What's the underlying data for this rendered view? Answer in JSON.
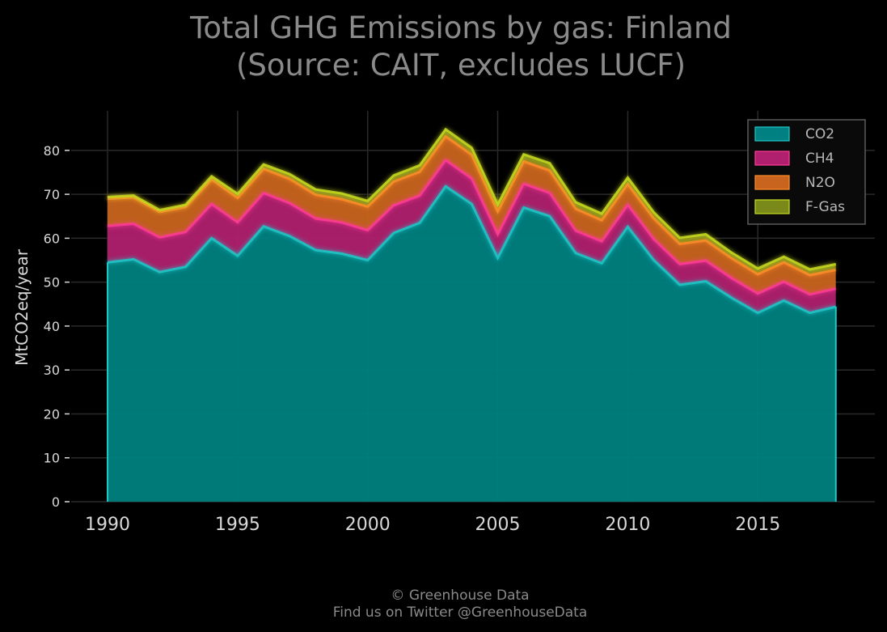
{
  "chart_data": {
    "type": "area",
    "title": "Total GHG Emissions by gas: Finland",
    "subtitle": "(Source: CAIT, excludes LUCF)",
    "ylabel": "MtCO2eq/year",
    "xlabel": "",
    "x": [
      1990,
      1991,
      1992,
      1993,
      1994,
      1995,
      1996,
      1997,
      1998,
      1999,
      2000,
      2001,
      2002,
      2003,
      2004,
      2005,
      2006,
      2007,
      2008,
      2009,
      2010,
      2011,
      2012,
      2013,
      2014,
      2015,
      2016,
      2017,
      2018
    ],
    "series": [
      {
        "name": "CO2",
        "color": "#008080",
        "values": [
          54.5,
          55.2,
          52.3,
          53.5,
          60.0,
          56.0,
          62.7,
          60.5,
          57.3,
          56.5,
          55.0,
          61.2,
          63.5,
          71.8,
          67.8,
          55.5,
          67.0,
          65.0,
          56.6,
          54.3,
          62.6,
          55.0,
          49.4,
          50.2,
          46.4,
          43.0,
          45.8,
          43.0,
          44.4
        ]
      },
      {
        "name": "CH4",
        "color": "#b0206e",
        "values": [
          8.3,
          8.1,
          7.9,
          7.9,
          7.8,
          7.6,
          7.6,
          7.5,
          7.2,
          7.1,
          6.8,
          6.3,
          6.2,
          6.0,
          5.8,
          5.4,
          5.4,
          5.3,
          5.1,
          5.0,
          5.0,
          4.8,
          4.7,
          4.7,
          4.5,
          4.4,
          4.3,
          4.2,
          4.1
        ]
      },
      {
        "name": "N2O",
        "color": "#c8641e",
        "values": [
          6.2,
          6.0,
          5.8,
          5.7,
          5.6,
          5.6,
          5.5,
          5.5,
          5.4,
          5.3,
          5.4,
          5.4,
          5.4,
          5.4,
          5.4,
          5.2,
          5.1,
          5.1,
          5.0,
          4.8,
          4.7,
          4.7,
          4.6,
          4.6,
          4.5,
          4.4,
          4.4,
          4.4,
          4.3
        ]
      },
      {
        "name": "F-Gas",
        "color": "#7a8a1a",
        "values": [
          0.4,
          0.4,
          0.4,
          0.5,
          0.7,
          0.9,
          1.0,
          1.1,
          1.2,
          1.3,
          1.3,
          1.4,
          1.5,
          1.6,
          1.6,
          1.6,
          1.6,
          1.7,
          1.5,
          1.5,
          1.5,
          1.4,
          1.4,
          1.4,
          1.3,
          1.3,
          1.3,
          1.3,
          1.3
        ]
      }
    ],
    "xticks": [
      1990,
      1995,
      2000,
      2005,
      2010,
      2015
    ],
    "yticks": [
      0,
      10,
      20,
      30,
      40,
      50,
      60,
      70,
      80
    ],
    "xlim": [
      1988.6,
      2019.5
    ],
    "ylim": [
      0,
      89
    ],
    "grid": true,
    "legend_position": "top-right"
  },
  "footer": {
    "line1": "© Greenhouse Data",
    "line2": "Find us on Twitter @GreenhouseData"
  }
}
